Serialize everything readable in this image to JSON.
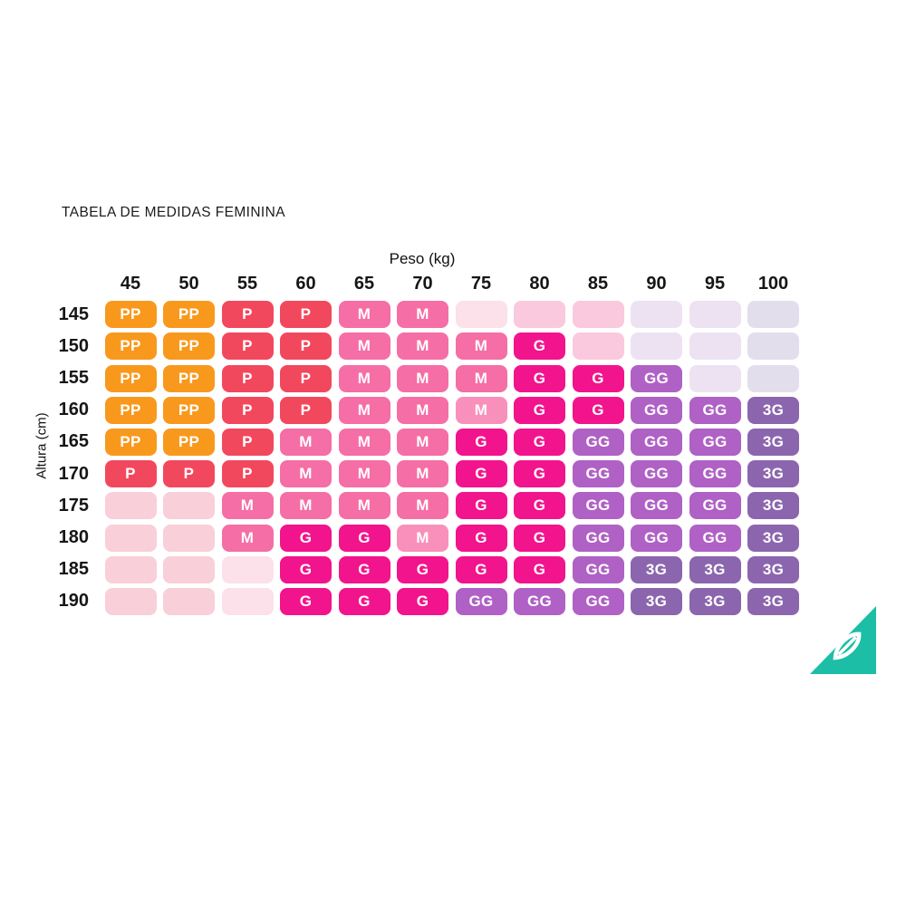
{
  "title": "TABELA DE MEDIDAS FEMININA",
  "axes": {
    "x_label": "Peso (kg)",
    "y_label": "Altura (cm)"
  },
  "chart_data": {
    "type": "heatmap",
    "title": "TABELA DE MEDIDAS FEMININA",
    "xlabel": "Peso (kg)",
    "ylabel": "Altura (cm)",
    "x_categories": [
      "45",
      "50",
      "55",
      "60",
      "65",
      "70",
      "75",
      "80",
      "85",
      "90",
      "95",
      "100"
    ],
    "y_categories": [
      "145",
      "150",
      "155",
      "160",
      "165",
      "170",
      "175",
      "180",
      "185",
      "190"
    ],
    "size_legend": [
      "PP",
      "P",
      "M",
      "G",
      "GG",
      "3G"
    ],
    "cell_sizes": [
      [
        "PP",
        "PP",
        "P",
        "P",
        "M",
        "M",
        "",
        "",
        "",
        "",
        "",
        ""
      ],
      [
        "PP",
        "PP",
        "P",
        "P",
        "M",
        "M",
        "M",
        "G",
        "",
        "",
        "",
        ""
      ],
      [
        "PP",
        "PP",
        "P",
        "P",
        "M",
        "M",
        "M",
        "G",
        "G",
        "GG",
        "",
        ""
      ],
      [
        "PP",
        "PP",
        "P",
        "P",
        "M",
        "M",
        "M",
        "G",
        "G",
        "GG",
        "GG",
        "3G"
      ],
      [
        "PP",
        "PP",
        "P",
        "M",
        "M",
        "M",
        "G",
        "G",
        "GG",
        "GG",
        "GG",
        "3G"
      ],
      [
        "P",
        "P",
        "P",
        "M",
        "M",
        "M",
        "G",
        "G",
        "GG",
        "GG",
        "GG",
        "3G"
      ],
      [
        "",
        "",
        "M",
        "M",
        "M",
        "M",
        "G",
        "G",
        "GG",
        "GG",
        "GG",
        "3G"
      ],
      [
        "",
        "",
        "M",
        "G",
        "G",
        "M",
        "G",
        "G",
        "GG",
        "GG",
        "GG",
        "3G"
      ],
      [
        "",
        "",
        "",
        "G",
        "G",
        "G",
        "G",
        "G",
        "GG",
        "3G",
        "3G",
        "3G"
      ],
      [
        "",
        "",
        "",
        "G",
        "G",
        "G",
        "GG",
        "GG",
        "GG",
        "3G",
        "3G",
        "3G"
      ]
    ],
    "cell_colors": [
      [
        "pp",
        "pp",
        "p",
        "p",
        "m",
        "m",
        "epl",
        "ep2",
        "ep2",
        "el",
        "el",
        "elg"
      ],
      [
        "pp",
        "pp",
        "p",
        "p",
        "m",
        "m",
        "m",
        "g",
        "ep2",
        "el",
        "el",
        "elg"
      ],
      [
        "pp",
        "pp",
        "p",
        "p",
        "m",
        "m",
        "m",
        "g",
        "g",
        "gg",
        "el",
        "elg"
      ],
      [
        "pp",
        "pp",
        "p",
        "p",
        "m",
        "m",
        "ml",
        "g",
        "g",
        "gg",
        "gg",
        "tg"
      ],
      [
        "pp",
        "pp",
        "p",
        "m",
        "m",
        "m",
        "g",
        "g",
        "gg",
        "gg",
        "gg",
        "tg"
      ],
      [
        "p",
        "p",
        "p",
        "m",
        "m",
        "m",
        "g",
        "g",
        "gg",
        "gg",
        "gg",
        "tg"
      ],
      [
        "ep",
        "ep",
        "m",
        "m",
        "m",
        "m",
        "g",
        "g",
        "gg",
        "gg",
        "gg",
        "tg"
      ],
      [
        "ep",
        "ep",
        "m",
        "g",
        "g",
        "ml",
        "g",
        "g",
        "gg",
        "gg",
        "gg",
        "tg"
      ],
      [
        "ep",
        "ep",
        "epl",
        "g",
        "g",
        "g",
        "g",
        "g",
        "gg",
        "tg",
        "tg",
        "tg"
      ],
      [
        "ep",
        "ep",
        "epl",
        "g",
        "g",
        "g",
        "gg",
        "gg",
        "gg",
        "tg",
        "tg",
        "tg"
      ]
    ],
    "palette": {
      "pp": "#F8991D",
      "p": "#F2485E",
      "m": "#F56EA6",
      "ml": "#F990BC",
      "g": "#F2148C",
      "gg": "#AF61C5",
      "tg": "#8B66AE",
      "ep": "#F9CFD9",
      "ep2": "#FAC9DE",
      "epl": "#FCE0EA",
      "el": "#EDE2F2",
      "elg": "#E3DEEC"
    }
  },
  "logo": {
    "icon": "leaf-icon",
    "triangle_color": "#1CBFA5",
    "emblem_color": "#ffffff"
  }
}
